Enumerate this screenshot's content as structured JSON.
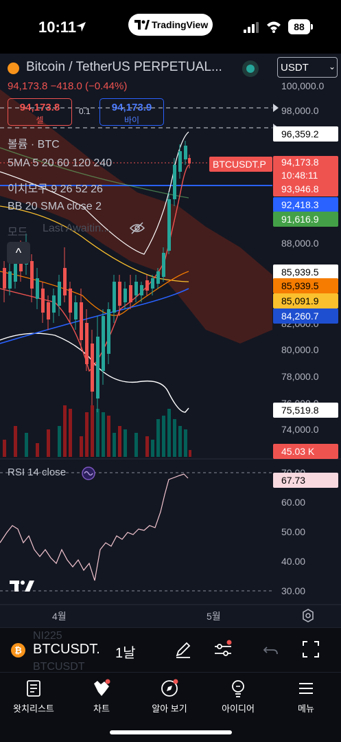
{
  "status_bar": {
    "time": "10:11",
    "app_pill": "TradingView",
    "battery": "88"
  },
  "header": {
    "symbol_title": "Bitcoin / TetherUS PERPETUAL...",
    "currency": "USDT",
    "last_price": "94,173.8",
    "change": "−418.0",
    "change_pct": "(−0.44%)"
  },
  "order": {
    "sell_price": "94,173.8",
    "sell_label": "셀",
    "spread": "0.1",
    "buy_price": "94,173.9",
    "buy_label": "바이"
  },
  "indicators": {
    "volume": "볼륨 · BTC",
    "ma": "5MA 5 20 60 120 240",
    "ichimoku": "이치모쿠 9 26 52 26",
    "bb": "BB 20 SMA close 2",
    "mode": "모드",
    "last_awaiting": "Last Awaitin..."
  },
  "price_axis": {
    "labels": [
      "100,000.0",
      "98,000.0",
      "88,000.0",
      "82,000.0",
      "80,000.0",
      "78,000.0",
      "76,000.0",
      "74,000.0"
    ]
  },
  "price_tags": {
    "alert_level": "96,359.2",
    "symbol_tag": "BTCUSDT.P",
    "current_price": "94,173.8",
    "countdown": "10:48:11",
    "ma_red": "93,946.8",
    "ma_blue": "92,418.3",
    "ma_green": "91,616.9",
    "ma_white": "85,939.5",
    "ma_orange": "85,939.5",
    "ma_yellow": "85,091.9",
    "ma_blue2": "84,260.7",
    "bb_lower": "75,519.8",
    "volume": "45.03 K"
  },
  "tag_colors": {
    "red": "#ef5350",
    "blue": "#2962ff",
    "green": "#43a047",
    "orange": "#f57c00",
    "yellow": "#fbc02d",
    "blue2": "#1e4fd1",
    "pink": "#f8d9e0"
  },
  "rsi": {
    "label": "RSI 14 close",
    "value": "67.73",
    "axis_labels": [
      "70.00",
      "60.00",
      "50.00",
      "40.00",
      "30.00"
    ]
  },
  "time_axis": {
    "april": "4월",
    "may": "5월"
  },
  "toolbar": {
    "ghost_above": "NI225",
    "coin_glyph": "₿",
    "symbol": "BTCUSDT.",
    "ghost_below": "BTCUSDT",
    "interval": "1날",
    "icons": [
      "pen-icon",
      "indicator-sliders-icon",
      "undo-icon",
      "fullscreen-icon"
    ]
  },
  "collapse": {
    "glyph": "^"
  },
  "nav": {
    "items": [
      {
        "label": "왓치리스트",
        "icon": "watchlist-icon"
      },
      {
        "label": "차트",
        "icon": "chart-icon"
      },
      {
        "label": "알아 보기",
        "icon": "explore-icon"
      },
      {
        "label": "아이디어",
        "icon": "ideas-icon"
      },
      {
        "label": "메뉴",
        "icon": "menu-icon"
      }
    ]
  }
}
